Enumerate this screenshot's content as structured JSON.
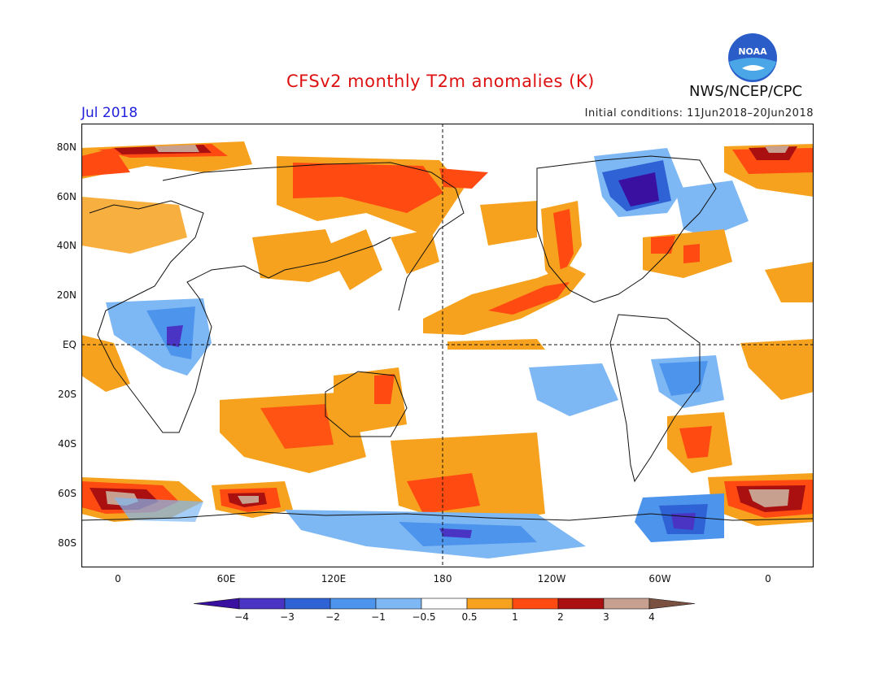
{
  "header": {
    "title": "CFSv2 monthly T2m anomalies (K)",
    "month": "Jul 2018",
    "initial_conditions": "Initial conditions: 11Jun2018–20Jun2018",
    "agency": "NWS/NCEP/CPC",
    "logo_icon": "noaa-logo-icon",
    "logo_text": "NOAA"
  },
  "map": {
    "projection": "cylindrical equidistant",
    "y_axis_labels": [
      "80N",
      "60N",
      "40N",
      "20N",
      "EQ",
      "20S",
      "40S",
      "60S",
      "80S"
    ],
    "x_axis_labels": [
      "0",
      "60E",
      "120E",
      "180",
      "120W",
      "60W",
      "0"
    ],
    "reference_lines": [
      "equator",
      "180 meridian"
    ]
  },
  "colorbar": {
    "labels": [
      "−4",
      "−3",
      "−2",
      "−1",
      "−0.5",
      "0.5",
      "1",
      "2",
      "3",
      "4"
    ],
    "colors": [
      "#3a10a0",
      "#4a34c4",
      "#2f62d4",
      "#4d94ec",
      "#7eb8f4",
      "#ffffff",
      "#f6a21e",
      "#ff4a12",
      "#aa1010",
      "#c8a090",
      "#7a5040"
    ]
  }
}
